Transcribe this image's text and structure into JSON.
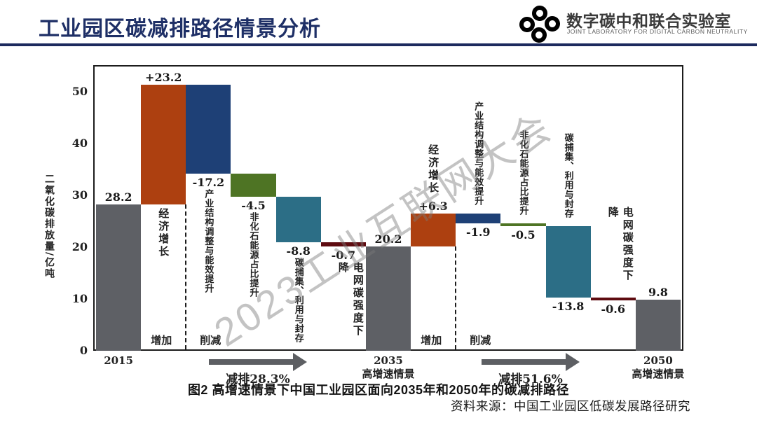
{
  "header": {
    "title": "工业园区碳减排路径情景分析",
    "accent_color": "#1c2a5e",
    "logo": {
      "name": "数字碳中和联合实验室",
      "subtitle": "JOINT LABORATORY FOR DIGITAL CARBON NEUTRALITY",
      "blue": "#1b87c9",
      "green": "#7ab82e"
    }
  },
  "watermark": "2023工业互联网大会",
  "chart_data": {
    "type": "bar",
    "subtype": "waterfall",
    "title": "图2  高增速情景下中国工业园区面向2035年和2050年的碳减排路径",
    "source": "资料来源：中国工业园区低碳发展路径研究",
    "ylabel": "二氧化碳排放量/亿吨",
    "yticks": [
      0,
      10,
      20,
      30,
      40,
      50
    ],
    "ylim": [
      0,
      55
    ],
    "colors": {
      "gray": "#5e6065",
      "orange": "#ad4010",
      "navy": "#1e4076",
      "green": "#4e7424",
      "teal": "#2c6e86",
      "darkred": "#5e0b10",
      "axis": "#1c1c1c",
      "arrow": "#5d5f63"
    },
    "bars": [
      {
        "tick": [
          "2015"
        ],
        "lo": 0,
        "hi": 28.2,
        "value_label": "28.2",
        "value_side": "above",
        "color": "gray"
      },
      {
        "name": "经济增长",
        "name_side": "below",
        "lo": 28.2,
        "hi": 51.4,
        "value_label": "+23.2",
        "value_side": "above",
        "color": "orange"
      },
      {
        "name": "产业结构调整与能效提升",
        "name_side": "below",
        "lo": 34.2,
        "hi": 51.4,
        "value_label": "-17.2",
        "value_side": "below",
        "color": "navy"
      },
      {
        "name": "非化石能源占比提升",
        "name_side": "below",
        "lo": 29.7,
        "hi": 34.2,
        "value_label": "-4.5",
        "value_side": "below",
        "color": "green"
      },
      {
        "name": "碳捕集、利用与封存",
        "name_side": "below",
        "lo": 20.9,
        "hi": 29.7,
        "value_label": "-8.8",
        "value_side": "below",
        "color": "teal"
      },
      {
        "name": "电网碳强度下降",
        "name_side": "below",
        "lo": 20.2,
        "hi": 20.9,
        "value_label": "-0.7",
        "value_side": "below",
        "color": "darkred"
      },
      {
        "tick": [
          "2035",
          "高增速情景"
        ],
        "lo": 0,
        "hi": 20.2,
        "value_label": "20.2",
        "value_side": "above",
        "color": "gray"
      },
      {
        "name": "经济增长",
        "name_side": "above",
        "lo": 20.2,
        "hi": 26.5,
        "value_label": "+6.3",
        "value_side": "above",
        "color": "orange"
      },
      {
        "name": "产业结构调整与能效提升",
        "name_side": "above",
        "lo": 24.6,
        "hi": 26.5,
        "value_label": "-1.9",
        "value_side": "below",
        "color": "navy"
      },
      {
        "name": "非化石能源占比提升",
        "name_side": "above",
        "lo": 24.1,
        "hi": 24.6,
        "value_label": "-0.5",
        "value_side": "below",
        "color": "green"
      },
      {
        "name": "碳捕集、利用与封存",
        "name_side": "above",
        "lo": 10.3,
        "hi": 24.1,
        "value_label": "-13.8",
        "value_side": "below",
        "color": "teal"
      },
      {
        "name": "电网碳强度下降",
        "name_side": "above",
        "lo": 9.7,
        "hi": 10.3,
        "value_label": "-0.6",
        "value_side": "below",
        "color": "darkred"
      },
      {
        "tick": [
          "2050",
          "高增速情景"
        ],
        "lo": 0,
        "hi": 9.8,
        "value_label": "9.8",
        "value_side": "above",
        "color": "gray"
      }
    ],
    "dividers": [
      {
        "after_index": 1,
        "top_value": 28.2,
        "left_label": "增加",
        "right_label": "削减"
      },
      {
        "after_index": 7,
        "top_value": 20.2,
        "left_label": "增加",
        "right_label": "削减"
      }
    ],
    "arrows": [
      {
        "label": "减排28.3%",
        "x_center": 368
      },
      {
        "label": "减排51.6%",
        "x_center": 757
      }
    ]
  }
}
